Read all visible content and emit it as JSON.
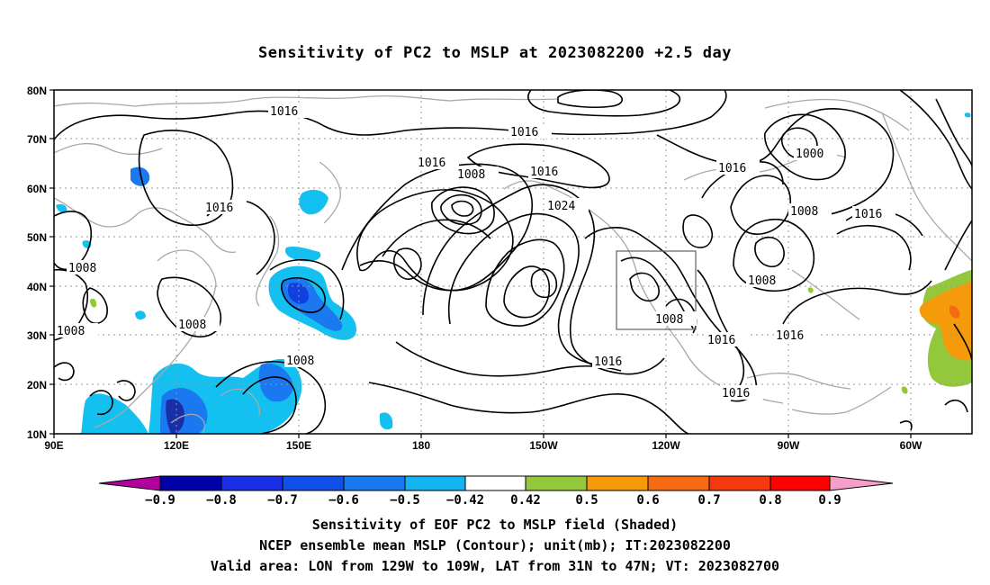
{
  "title": "Sensitivity of PC2 to MSLP at 2023082200 +2.5 day",
  "axes": {
    "lat_ticks": [
      "80N",
      "70N",
      "60N",
      "50N",
      "40N",
      "30N",
      "20N",
      "10N"
    ],
    "lon_ticks": [
      "90E",
      "120E",
      "150E",
      "180",
      "150W",
      "120W",
      "90W",
      "60W"
    ]
  },
  "contour_labels": [
    "1016",
    "1016",
    "1016",
    "1008",
    "1016",
    "1024",
    "1016",
    "1000",
    "1008",
    "1016",
    "1016",
    "1008",
    "1008",
    "1008",
    "1008",
    "1016",
    "1016",
    "1008",
    "1016",
    "1008",
    "1016"
  ],
  "valid_area": {
    "lon_from": "129W",
    "lon_to": "109W",
    "lat_from": "31N",
    "lat_to": "47N"
  },
  "colorbar": {
    "labels": [
      "−0.9",
      "−0.8",
      "−0.7",
      "−0.6",
      "−0.5",
      "−0.42",
      "0.42",
      "0.5",
      "0.6",
      "0.7",
      "0.8",
      "0.9"
    ],
    "colors": [
      "#b0009e",
      "#0000a8",
      "#1a2ee6",
      "#1050e8",
      "#1a78f0",
      "#14b4f0",
      "#ffffff",
      "#94c83c",
      "#f59a0a",
      "#f66a12",
      "#f5380e",
      "#ff0000",
      "#f59ec8"
    ]
  },
  "shading_colors": {
    "blue_light": "#14c0f0",
    "blue_mid": "#1a78f0",
    "blue_dark": "#1040e0",
    "navy": "#1a2ea8",
    "green": "#94c83c",
    "orange": "#f59a0a"
  },
  "captions": [
    "Sensitivity of EOF PC2 to MSLP field (Shaded)",
    "NCEP ensemble mean MSLP (Contour); unit(mb); IT:2023082200",
    "Valid area: LON from 129W to 109W, LAT from 31N to 47N; VT: 2023082700"
  ]
}
